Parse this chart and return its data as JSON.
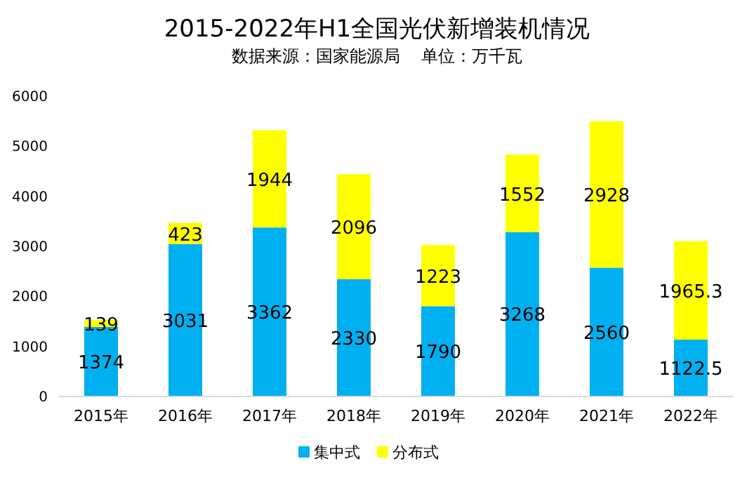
{
  "chart_data": {
    "type": "bar",
    "title": "2015-2022年H1全国光伏新增装机情况",
    "subtitle": "数据来源：国家能源局    单位：万千瓦",
    "categories": [
      "2015年",
      "2016年",
      "2017年",
      "2018年",
      "2019年",
      "2020年",
      "2021年",
      "2022年"
    ],
    "series": [
      {
        "name": "集中式",
        "color": "#00b0f0",
        "values": [
          1374,
          3031,
          3362,
          2330,
          1790,
          3268,
          2560,
          1122.5
        ]
      },
      {
        "name": "分布式",
        "color": "#ffff00",
        "values": [
          139,
          423,
          1944,
          2096,
          1223,
          1552,
          2928,
          1965.3
        ]
      }
    ],
    "stacked": true,
    "ylim": [
      0,
      6000
    ],
    "yticks": [
      0,
      1000,
      2000,
      3000,
      4000,
      5000,
      6000
    ],
    "data_labels": true,
    "legend": "bottom"
  }
}
